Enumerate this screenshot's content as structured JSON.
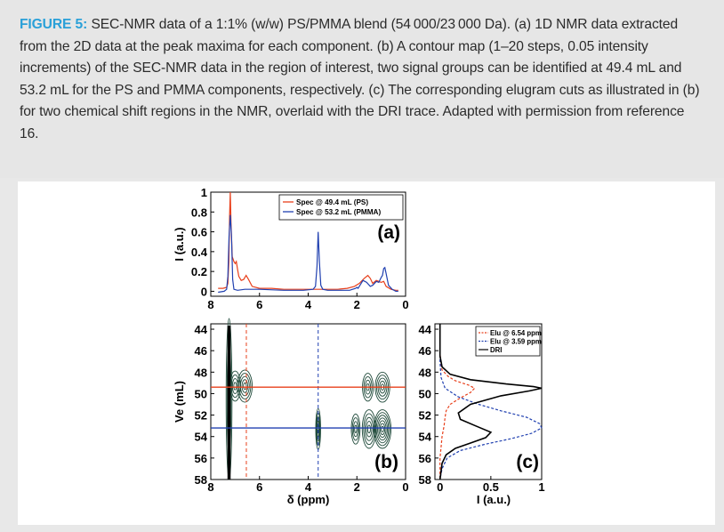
{
  "caption": {
    "label": "FIGURE 5:",
    "text": " SEC-NMR data of a 1:1% (w/w) PS/PMMA blend (54 000/23 000 Da). (a) 1D NMR data extracted from the 2D data at the peak maxima for each component. (b) A contour map (1–20 steps, 0.05 intensity increments) of the SEC-NMR data in the region of interest, two signal groups can be identified at 49.4 mL and 53.2 mL for the PS and PMMA components, respectively. (c) The corresponding elugram cuts as illustrated in (b) for two chemical shift regions in the NMR, overlaid with the DRI trace. Adapted with permission from reference 16."
  },
  "colors": {
    "ps": "#e8401c",
    "pmma": "#2040b0",
    "dri": "#000000",
    "contour": "#1f4a3a"
  },
  "chart_data": [
    {
      "type": "line",
      "panel_label": "(a)",
      "ylabel": "I (a.u.)",
      "xlim": [
        8,
        0
      ],
      "ylim": [
        -0.05,
        1
      ],
      "yticks": [
        "1",
        "0.8",
        "0.6",
        "0.4",
        "0.2",
        "0"
      ],
      "ytick_values": [
        1,
        0.8,
        0.6,
        0.4,
        0.2,
        0
      ],
      "xticks": [
        "8",
        "6",
        "4",
        "2",
        "0"
      ],
      "xtick_values": [
        8,
        6,
        4,
        2,
        0
      ],
      "legend_position": "top-right",
      "series": [
        {
          "name": "Spec @ 49.4 mL (PS)",
          "color": "#e8401c",
          "x": [
            7.7,
            7.5,
            7.35,
            7.3,
            7.26,
            7.23,
            7.2,
            7.17,
            7.12,
            7.05,
            7.0,
            6.95,
            6.9,
            6.85,
            6.75,
            6.65,
            6.55,
            6.45,
            6.3,
            6.0,
            5.5,
            5.0,
            4.5,
            4.0,
            3.7,
            3.59,
            3.5,
            3.2,
            2.8,
            2.4,
            2.1,
            1.9,
            1.7,
            1.55,
            1.45,
            1.35,
            1.2,
            1.1,
            1.0,
            0.9,
            0.8,
            0.6,
            0.4,
            0.3
          ],
          "y": [
            0.03,
            0.03,
            0.04,
            0.08,
            0.3,
            0.75,
            1.0,
            0.7,
            0.35,
            0.3,
            0.28,
            0.3,
            0.22,
            0.15,
            0.11,
            0.12,
            0.16,
            0.12,
            0.05,
            0.03,
            0.03,
            0.02,
            0.02,
            0.02,
            0.02,
            0.02,
            0.02,
            0.02,
            0.02,
            0.03,
            0.05,
            0.08,
            0.13,
            0.16,
            0.13,
            0.08,
            0.11,
            0.1,
            0.09,
            0.1,
            0.05,
            0.02,
            0.01,
            0.01
          ]
        },
        {
          "name": "Spec @ 53.2 mL (PMMA)",
          "color": "#2040b0",
          "x": [
            7.7,
            7.45,
            7.35,
            7.3,
            7.25,
            7.2,
            7.15,
            7.1,
            7.05,
            6.9,
            6.6,
            6.0,
            5.0,
            4.2,
            3.8,
            3.7,
            3.64,
            3.59,
            3.54,
            3.48,
            3.4,
            3.2,
            2.8,
            2.3,
            2.05,
            2.0,
            1.95,
            1.85,
            1.75,
            1.6,
            1.45,
            1.35,
            1.2,
            1.1,
            1.0,
            0.95,
            0.9,
            0.85,
            0.8,
            0.7,
            0.55,
            0.4,
            0.3
          ],
          "y": [
            -0.01,
            0.0,
            0.02,
            0.15,
            0.55,
            0.77,
            0.55,
            0.12,
            0.02,
            0.01,
            0.02,
            0.02,
            0.01,
            0.01,
            0.02,
            0.05,
            0.25,
            0.6,
            0.3,
            0.06,
            0.02,
            0.01,
            0.01,
            0.01,
            0.03,
            0.04,
            0.03,
            0.07,
            0.11,
            0.09,
            0.05,
            0.06,
            0.1,
            0.09,
            0.14,
            0.16,
            0.23,
            0.24,
            0.18,
            0.06,
            0.02,
            0.0,
            0.0
          ]
        }
      ]
    },
    {
      "type": "contour",
      "panel_label": "(b)",
      "xlabel": "δ (ppm)",
      "ylabel": "Ve (mL)",
      "xlim": [
        8,
        0
      ],
      "ylim": [
        58,
        43.5
      ],
      "xticks": [
        "8",
        "6",
        "4",
        "2",
        "0"
      ],
      "xtick_values": [
        8,
        6,
        4,
        2,
        0
      ],
      "yticks": [
        "44",
        "46",
        "48",
        "50",
        "52",
        "54",
        "56",
        "58"
      ],
      "ytick_values": [
        44,
        46,
        48,
        50,
        52,
        54,
        56,
        58
      ],
      "hlines": [
        {
          "y": 49.4,
          "color": "#e8401c"
        },
        {
          "y": 53.2,
          "color": "#2040b0"
        }
      ],
      "vlines": [
        {
          "x": 6.54,
          "color": "#e8401c",
          "style": "dashed"
        },
        {
          "x": 3.59,
          "color": "#2040b0",
          "style": "dashed"
        }
      ],
      "groups": [
        {
          "cx": 7.25,
          "cy": 50.5,
          "rx": 0.12,
          "ry": 7.5,
          "levels": 3
        },
        {
          "cx": 7.0,
          "cy": 49.3,
          "rx": 0.22,
          "ry": 1.4,
          "levels": 4
        },
        {
          "cx": 6.6,
          "cy": 49.3,
          "rx": 0.3,
          "ry": 1.5,
          "levels": 5
        },
        {
          "cx": 3.59,
          "cy": 53.3,
          "rx": 0.1,
          "ry": 1.9,
          "levels": 5
        },
        {
          "cx": 2.05,
          "cy": 53.3,
          "rx": 0.18,
          "ry": 1.4,
          "levels": 4
        },
        {
          "cx": 1.55,
          "cy": 49.4,
          "rx": 0.22,
          "ry": 1.3,
          "levels": 4
        },
        {
          "cx": 1.5,
          "cy": 53.3,
          "rx": 0.28,
          "ry": 1.8,
          "levels": 5
        },
        {
          "cx": 0.95,
          "cy": 49.4,
          "rx": 0.3,
          "ry": 1.4,
          "levels": 5
        },
        {
          "cx": 0.95,
          "cy": 53.3,
          "rx": 0.35,
          "ry": 1.8,
          "levels": 7
        }
      ]
    },
    {
      "type": "line",
      "panel_label": "(c)",
      "xlabel": "I (a.u.)",
      "xlim": [
        -0.05,
        1
      ],
      "ylim": [
        58,
        43.5
      ],
      "xticks": [
        "0",
        "0.5",
        "1"
      ],
      "xtick_values": [
        0,
        0.5,
        1
      ],
      "yticks": [
        "44",
        "46",
        "48",
        "50",
        "52",
        "54",
        "56",
        "58"
      ],
      "ytick_values": [
        44,
        46,
        48,
        50,
        52,
        54,
        56,
        58
      ],
      "legend_position": "top-right",
      "series": [
        {
          "name": "Elu @ 6.54 ppm",
          "color": "#e8401c",
          "style": "dashed",
          "x": [
            0.0,
            0.0,
            0.005,
            0.02,
            0.08,
            0.15,
            0.28,
            0.34,
            0.3,
            0.2,
            0.1,
            0.06,
            0.05,
            0.04,
            0.02,
            0.01,
            0.0,
            0.0
          ],
          "y": [
            43.5,
            46,
            47,
            47.8,
            48.4,
            48.8,
            49.2,
            49.5,
            49.9,
            50.4,
            51.0,
            51.6,
            52.2,
            53.0,
            54.0,
            55.0,
            56.0,
            58.0
          ]
        },
        {
          "name": "Elu @ 3.59 ppm",
          "color": "#2040b0",
          "style": "dashed",
          "x": [
            0.0,
            0.0,
            0.01,
            0.05,
            0.18,
            0.38,
            0.6,
            0.85,
            0.98,
            1.0,
            0.9,
            0.7,
            0.45,
            0.2,
            0.07,
            0.02,
            0.0
          ],
          "y": [
            43.5,
            47,
            48.5,
            49.5,
            50.3,
            51.0,
            51.6,
            52.2,
            52.8,
            53.2,
            53.7,
            54.2,
            54.7,
            55.3,
            56.0,
            57.0,
            58.0
          ]
        },
        {
          "name": "DRI",
          "color": "#000000",
          "style": "solid",
          "x": [
            0.0,
            0.0,
            0.02,
            0.1,
            0.3,
            0.65,
            0.92,
            1.0,
            0.88,
            0.6,
            0.3,
            0.18,
            0.2,
            0.35,
            0.5,
            0.45,
            0.3,
            0.15,
            0.06,
            0.02,
            0.0
          ],
          "y": [
            43.5,
            46.5,
            47.5,
            48.2,
            48.7,
            49.1,
            49.35,
            49.5,
            49.75,
            50.2,
            51.0,
            51.8,
            52.4,
            53.0,
            53.6,
            54.1,
            54.6,
            55.1,
            55.7,
            56.5,
            58.0
          ]
        }
      ]
    }
  ]
}
